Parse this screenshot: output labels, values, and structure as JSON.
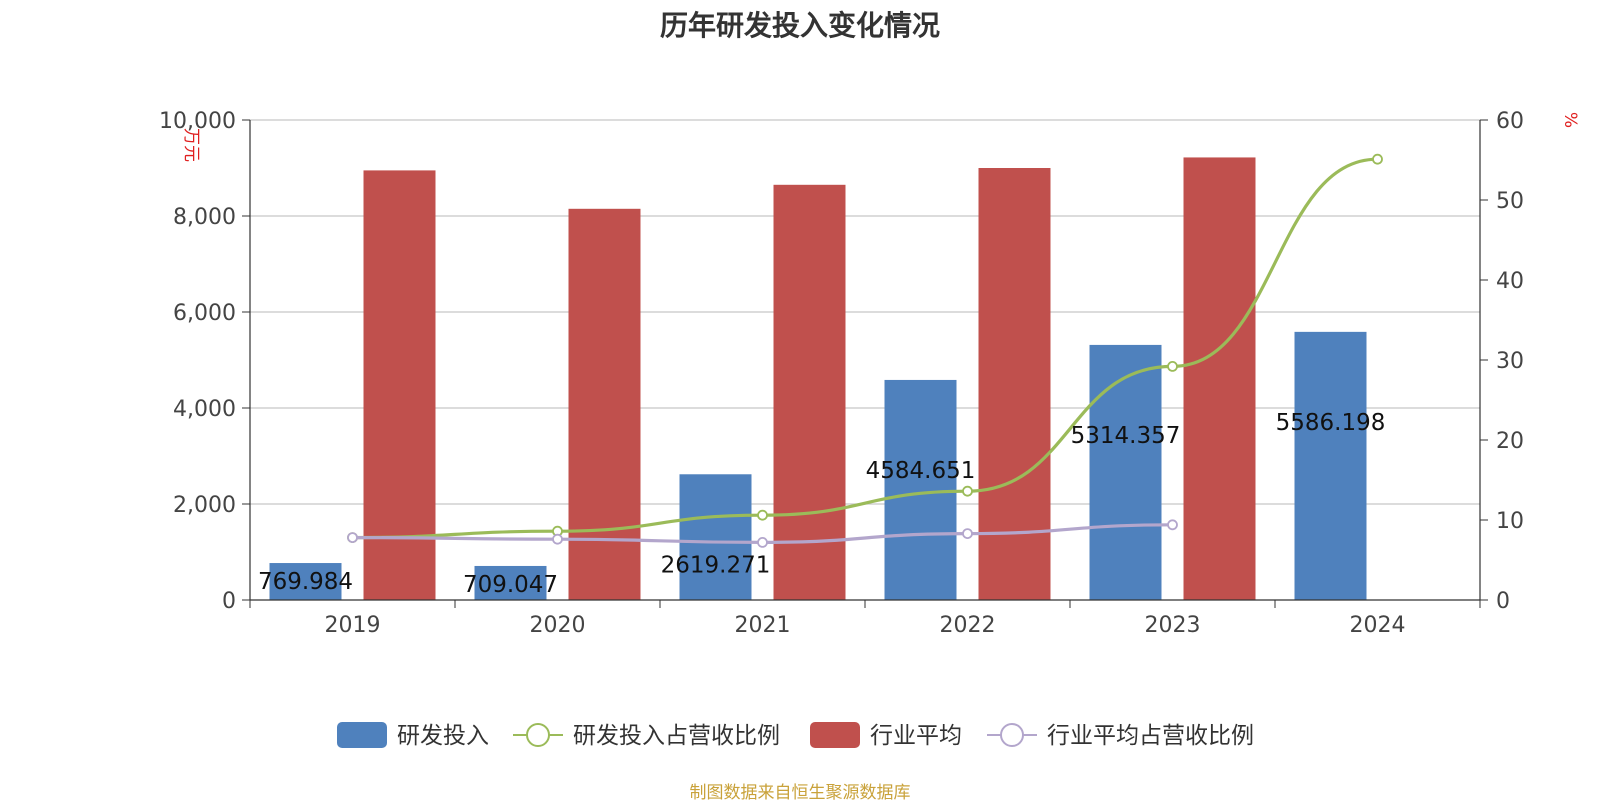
{
  "title": "历年研发投入变化情况",
  "source_note": "制图数据来自恒生聚源数据库",
  "chart_data": {
    "type": "bar",
    "categories": [
      "2019",
      "2020",
      "2021",
      "2022",
      "2023",
      "2024"
    ],
    "y_left": {
      "unit_label": "万元",
      "ylim": [
        0,
        10000
      ],
      "ticks": [
        "0",
        "2,000",
        "4,000",
        "6,000",
        "8,000",
        "10,000"
      ]
    },
    "y_right": {
      "unit_label": "%",
      "ylim": [
        0,
        60
      ],
      "ticks": [
        "0",
        "10",
        "20",
        "30",
        "40",
        "50",
        "60"
      ]
    },
    "grid": true,
    "legend_position": "bottom",
    "series": [
      {
        "name": "研发投入",
        "type": "bar",
        "axis": "left",
        "color": "#4f81bd",
        "values": [
          769.984,
          709.047,
          2619.271,
          4584.651,
          5314.357,
          5586.198
        ],
        "labels": [
          "769.984",
          "709.047",
          "2619.271",
          "4584.651",
          "5314.357",
          "5586.198"
        ]
      },
      {
        "name": "研发投入占营收比例",
        "type": "line",
        "axis": "right",
        "color": "#9bbb59",
        "values": [
          7.8,
          8.6,
          10.6,
          13.6,
          29.2,
          55.1
        ]
      },
      {
        "name": "行业平均",
        "type": "bar",
        "axis": "left",
        "color": "#c0504d",
        "values": [
          8950,
          8150,
          8650,
          9000,
          9220,
          null
        ]
      },
      {
        "name": "行业平均占营收比例",
        "type": "line",
        "axis": "right",
        "color": "#b3a6cc",
        "values": [
          7.8,
          7.6,
          7.2,
          8.3,
          9.4,
          null
        ]
      }
    ]
  }
}
